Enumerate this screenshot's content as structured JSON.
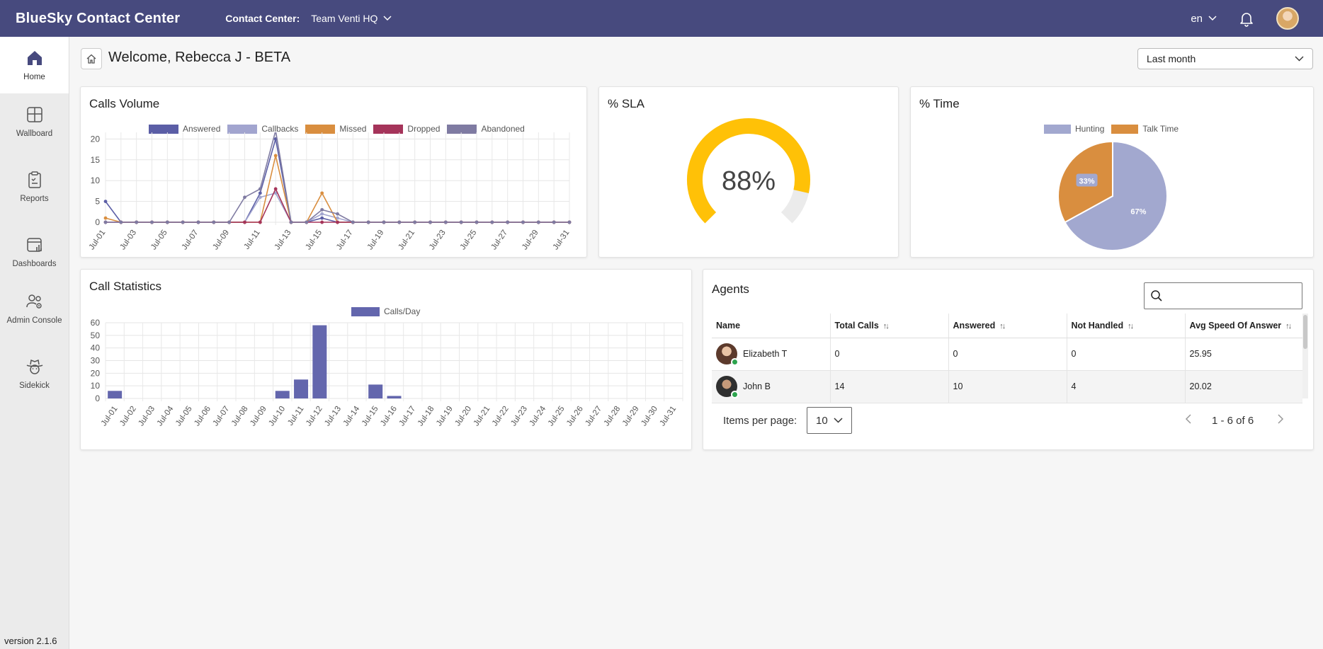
{
  "app": {
    "title": "BlueSky Contact Center",
    "contact_center_label": "Contact Center:",
    "contact_center_value": "Team Venti HQ",
    "language": "en",
    "version": "version 2.1.6"
  },
  "sidebar": {
    "items": [
      {
        "label": "Home",
        "icon": "home-icon"
      },
      {
        "label": "Wallboard",
        "icon": "wallboard-icon"
      },
      {
        "label": "Reports",
        "icon": "clipboard-icon"
      },
      {
        "label": "Dashboards",
        "icon": "dashboard-icon"
      },
      {
        "label": "Admin Console",
        "icon": "admin-users-icon"
      },
      {
        "label": "Sidekick",
        "icon": "cowboy-icon"
      }
    ]
  },
  "header": {
    "welcome": "Welcome, Rebecca J - BETA",
    "period": "Last month"
  },
  "colors": {
    "topbar": "#474a7e",
    "answered": "#5b5ea6",
    "callbacks": "#a2a5cf",
    "missed": "#d98e3f",
    "dropped": "#a5345a",
    "abandoned": "#7f7ba2",
    "sla": "#ffc107",
    "bar": "#6366ad"
  },
  "calls_volume": {
    "title": "Calls Volume",
    "chart_data": {
      "type": "line",
      "x": [
        "Jul-01",
        "Jul-02",
        "Jul-03",
        "Jul-04",
        "Jul-05",
        "Jul-06",
        "Jul-07",
        "Jul-08",
        "Jul-09",
        "Jul-10",
        "Jul-11",
        "Jul-12",
        "Jul-13",
        "Jul-14",
        "Jul-15",
        "Jul-16",
        "Jul-17",
        "Jul-18",
        "Jul-19",
        "Jul-20",
        "Jul-21",
        "Jul-22",
        "Jul-23",
        "Jul-24",
        "Jul-25",
        "Jul-26",
        "Jul-27",
        "Jul-28",
        "Jul-29",
        "Jul-30",
        "Jul-31"
      ],
      "x_tick_labels": [
        "Jul-01",
        "Jul-03",
        "Jul-05",
        "Jul-07",
        "Jul-09",
        "Jul-11",
        "Jul-13",
        "Jul-15",
        "Jul-17",
        "Jul-19",
        "Jul-21",
        "Jul-23",
        "Jul-25",
        "Jul-27",
        "Jul-29",
        "Jul-31"
      ],
      "ylim": [
        0,
        25
      ],
      "y_ticks": [
        0,
        5,
        10,
        15,
        20,
        25
      ],
      "legend_position": "top",
      "grid": true,
      "series": [
        {
          "name": "Answered",
          "values": [
            5,
            0,
            0,
            0,
            0,
            0,
            0,
            0,
            0,
            0,
            7,
            20,
            0,
            0,
            1,
            0,
            0,
            0,
            0,
            0,
            0,
            0,
            0,
            0,
            0,
            0,
            0,
            0,
            0,
            0,
            0
          ]
        },
        {
          "name": "Callbacks",
          "values": [
            0,
            0,
            0,
            0,
            0,
            0,
            0,
            0,
            0,
            0,
            6,
            7,
            0,
            0,
            2,
            1,
            0,
            0,
            0,
            0,
            0,
            0,
            0,
            0,
            0,
            0,
            0,
            0,
            0,
            0,
            0
          ]
        },
        {
          "name": "Missed",
          "values": [
            1,
            0,
            0,
            0,
            0,
            0,
            0,
            0,
            0,
            0,
            0,
            16,
            0,
            0,
            7,
            0,
            0,
            0,
            0,
            0,
            0,
            0,
            0,
            0,
            0,
            0,
            0,
            0,
            0,
            0,
            0
          ]
        },
        {
          "name": "Dropped",
          "values": [
            0,
            0,
            0,
            0,
            0,
            0,
            0,
            0,
            0,
            0,
            0,
            8,
            0,
            0,
            0,
            0,
            0,
            0,
            0,
            0,
            0,
            0,
            0,
            0,
            0,
            0,
            0,
            0,
            0,
            0,
            0
          ]
        },
        {
          "name": "Abandoned",
          "values": [
            0,
            0,
            0,
            0,
            0,
            0,
            0,
            0,
            0,
            6,
            8,
            22,
            0,
            0,
            3,
            2,
            0,
            0,
            0,
            0,
            0,
            0,
            0,
            0,
            0,
            0,
            0,
            0,
            0,
            0,
            0
          ]
        }
      ]
    }
  },
  "sla": {
    "title": "% SLA",
    "chart_data": {
      "type": "gauge",
      "value": 88,
      "label": "88%"
    }
  },
  "time": {
    "title": "% Time",
    "chart_data": {
      "type": "pie",
      "legend_position": "top",
      "slices": [
        {
          "name": "Hunting",
          "value": 67,
          "label": "67%"
        },
        {
          "name": "Talk Time",
          "value": 33,
          "label": "33%"
        }
      ]
    }
  },
  "call_statistics": {
    "title": "Call Statistics",
    "chart_data": {
      "type": "bar",
      "categories": [
        "Jul-01",
        "Jul-02",
        "Jul-03",
        "Jul-04",
        "Jul-05",
        "Jul-06",
        "Jul-07",
        "Jul-08",
        "Jul-09",
        "Jul-10",
        "Jul-11",
        "Jul-12",
        "Jul-13",
        "Jul-14",
        "Jul-15",
        "Jul-16",
        "Jul-17",
        "Jul-18",
        "Jul-19",
        "Jul-20",
        "Jul-21",
        "Jul-22",
        "Jul-23",
        "Jul-24",
        "Jul-25",
        "Jul-26",
        "Jul-27",
        "Jul-28",
        "Jul-29",
        "Jul-30",
        "Jul-31"
      ],
      "series": [
        {
          "name": "Calls/Day",
          "values": [
            6,
            0,
            0,
            0,
            0,
            0,
            0,
            0,
            0,
            6,
            15,
            58,
            0,
            0,
            11,
            2,
            0,
            0,
            0,
            0,
            0,
            0,
            0,
            0,
            0,
            0,
            0,
            0,
            0,
            0,
            0
          ]
        }
      ],
      "ylim": [
        0,
        60
      ],
      "y_ticks": [
        0,
        10,
        20,
        30,
        40,
        50,
        60
      ],
      "legend_position": "top",
      "grid": true
    }
  },
  "agents": {
    "title": "Agents",
    "search": {
      "value": "",
      "placeholder": ""
    },
    "columns": [
      "Name",
      "Total Calls",
      "Answered",
      "Not Handled",
      "Avg Speed Of Answer"
    ],
    "rows": [
      {
        "name": "Elizabeth T",
        "total_calls": "0",
        "answered": "0",
        "not_handled": "0",
        "avg_speed": "25.95"
      },
      {
        "name": "John B",
        "total_calls": "14",
        "answered": "10",
        "not_handled": "4",
        "avg_speed": "20.02"
      }
    ],
    "paginator": {
      "label": "Items per page:",
      "page_size": "10",
      "range": "1 - 6 of 6"
    }
  }
}
